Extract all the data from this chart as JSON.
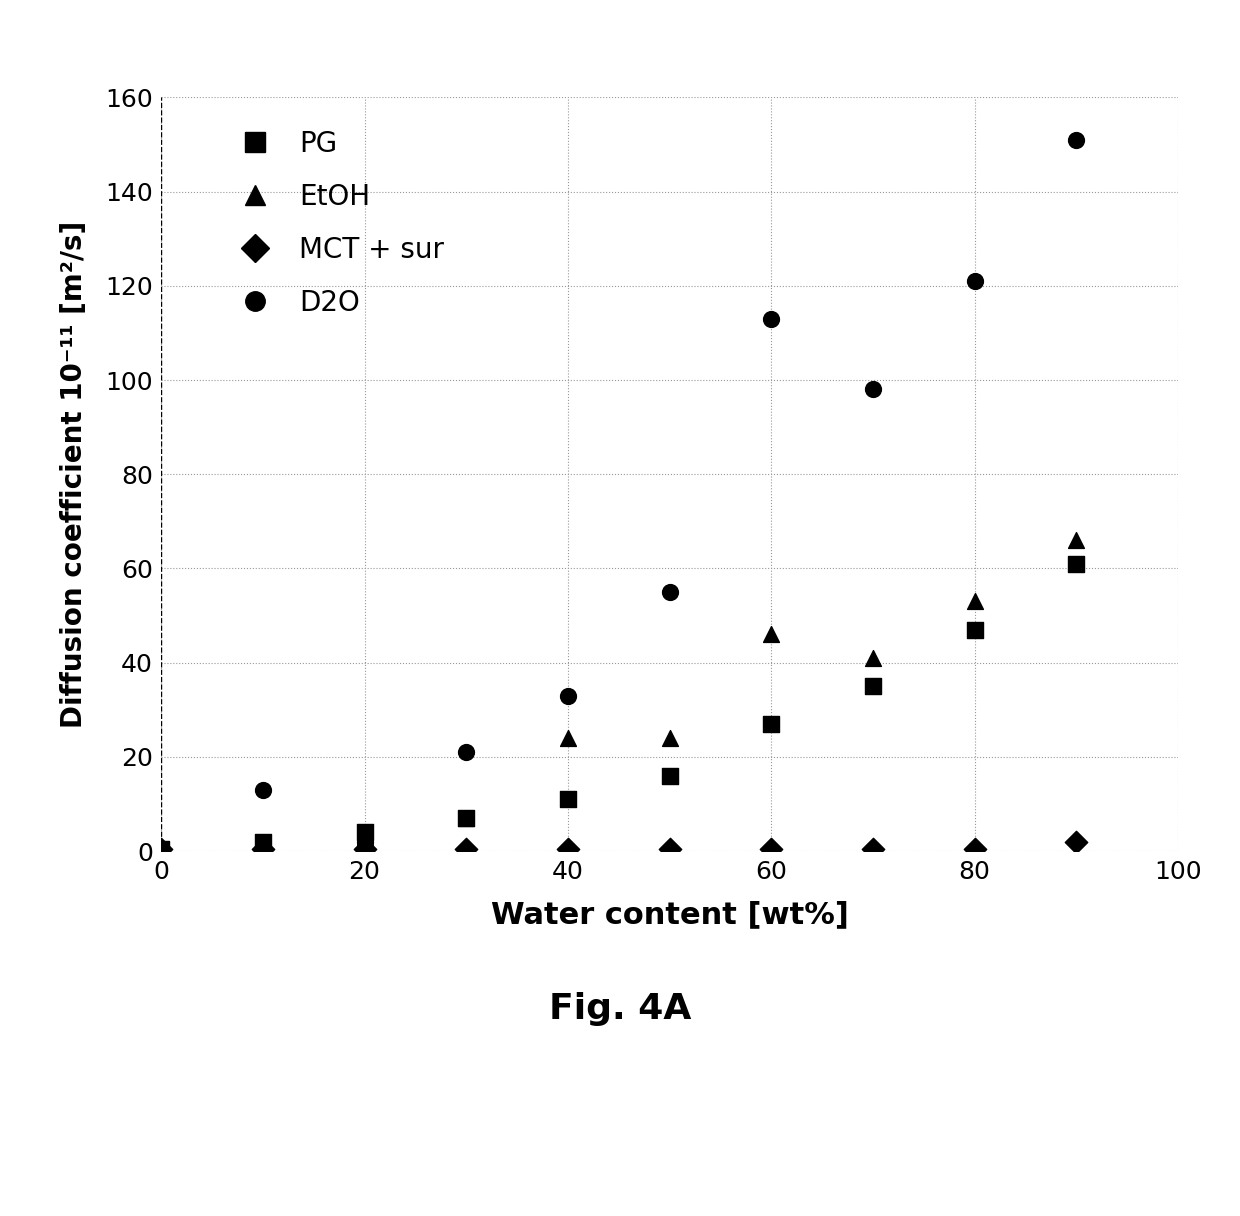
{
  "title": "Fig. 4A",
  "ylabel": "Diffusion coefficient 10⁻¹¹ [m²/s]",
  "xlabel": "Water content [wt%]",
  "ylim": [
    0,
    160
  ],
  "xlim": [
    0,
    100
  ],
  "yticks": [
    0,
    20,
    40,
    60,
    80,
    100,
    120,
    140,
    160
  ],
  "xticks": [
    0,
    20,
    40,
    60,
    80,
    100
  ],
  "PG": {
    "x": [
      0,
      10,
      20,
      30,
      40,
      50,
      60,
      70,
      80,
      90
    ],
    "y": [
      0.5,
      2,
      4,
      7,
      11,
      16,
      27,
      35,
      47,
      61
    ]
  },
  "EtOH": {
    "x": [
      0,
      10,
      20,
      30,
      40,
      50,
      60,
      70,
      80,
      90
    ],
    "y": [
      0.5,
      1,
      3,
      7,
      24,
      24,
      46,
      41,
      53,
      66
    ]
  },
  "MCT_sur": {
    "x": [
      0,
      10,
      20,
      30,
      40,
      50,
      60,
      70,
      80,
      90
    ],
    "y": [
      0.5,
      0.5,
      0.5,
      0.5,
      0.5,
      0.5,
      0.5,
      0.5,
      0.5,
      2
    ]
  },
  "D2O": {
    "x": [
      0,
      10,
      20,
      30,
      40,
      50,
      60,
      70,
      80,
      90
    ],
    "y": [
      0.5,
      13,
      2,
      21,
      33,
      55,
      113,
      98,
      121,
      151
    ]
  },
  "marker_color": "#000000",
  "background_color": "#ffffff",
  "grid_color": "#999999",
  "legend_labels": [
    "PG",
    "EtOH",
    "MCT + sur",
    "D2O"
  ],
  "legend_markers": [
    "s",
    "^",
    "D",
    "o"
  ],
  "marker_size": 130,
  "legend_fontsize": 20,
  "tick_fontsize": 18,
  "xlabel_fontsize": 22,
  "ylabel_fontsize": 20,
  "title_fontsize": 26
}
